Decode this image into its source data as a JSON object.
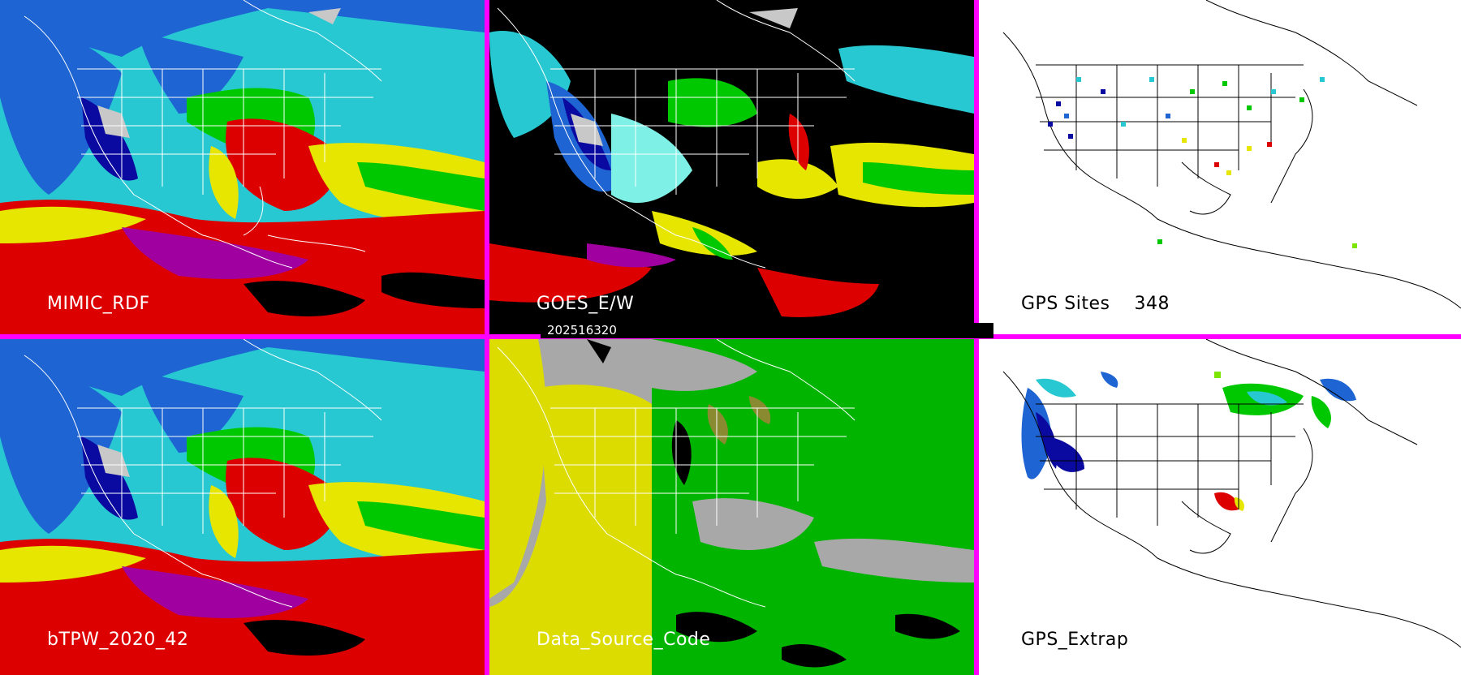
{
  "panels": [
    {
      "label": "MIMIC_RDF"
    },
    {
      "label": "GOES_E/W"
    },
    {
      "label": "GPS Sites    348"
    },
    {
      "label": "bTPW_2020_42"
    },
    {
      "label": "Data_Source_Code"
    },
    {
      "label": "GPS_Extrap"
    }
  ],
  "timestamp": "202516320",
  "colors": {
    "divider": "#ff00ff",
    "palette": [
      "#0a0aa0",
      "#1e64d2",
      "#28c8d2",
      "#7ef0e6",
      "#00c800",
      "#7ce600",
      "#e6e600",
      "#dc0000",
      "#a000a0",
      "#000000",
      "#c8c8c8"
    ]
  }
}
